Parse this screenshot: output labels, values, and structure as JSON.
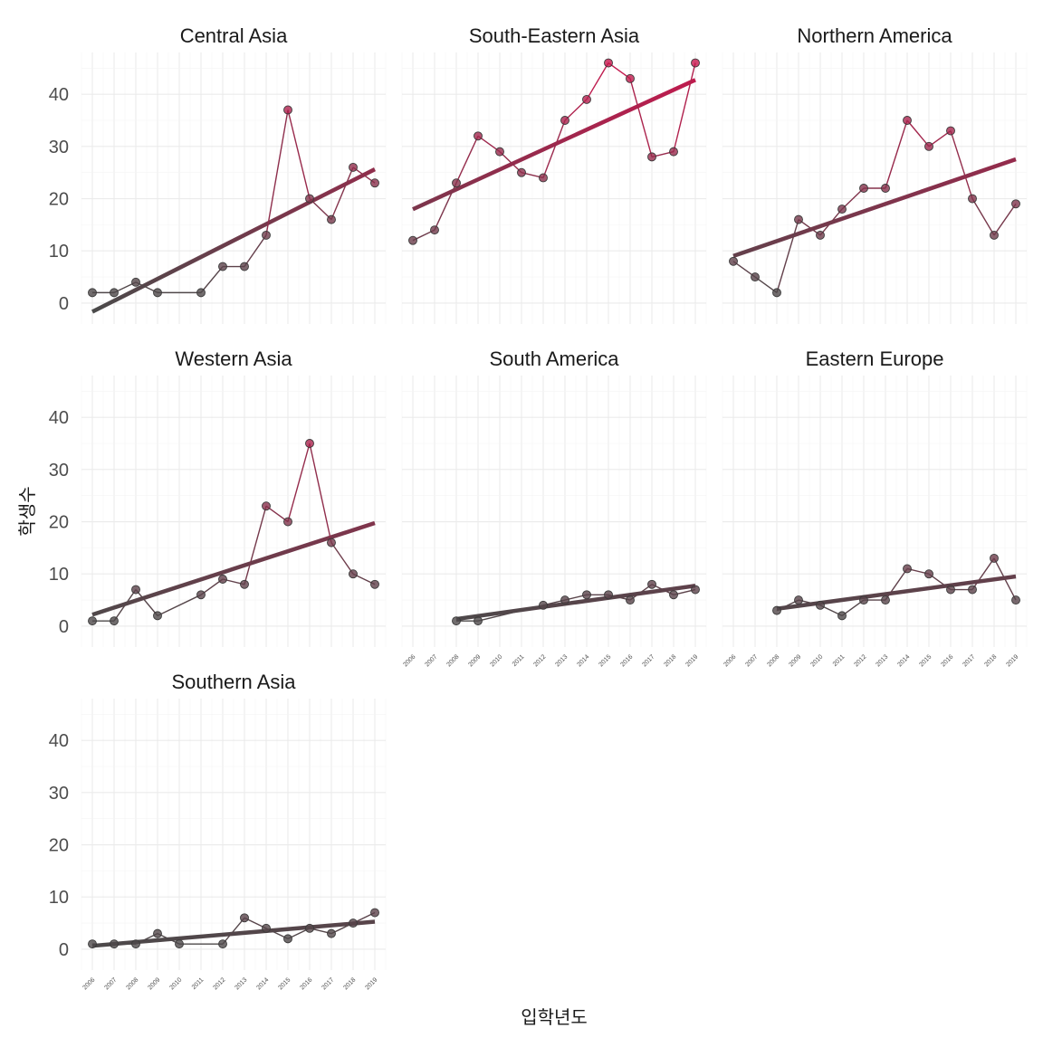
{
  "chart_data": {
    "type": "line",
    "facet": true,
    "xlabel": "입학년도",
    "ylabel": "학생수",
    "x_ticks": [
      2006,
      2007,
      2008,
      2009,
      2010,
      2011,
      2012,
      2013,
      2014,
      2015,
      2016,
      2017,
      2018,
      2019
    ],
    "y_ticks": [
      0,
      10,
      20,
      30,
      40
    ],
    "ylim": [
      -4,
      48
    ],
    "xlim": [
      2005.5,
      2019.5
    ],
    "grid": true,
    "color_scale": {
      "low": "#4a4a4a",
      "high": "#c8174e"
    },
    "trend": "linear",
    "series": [
      {
        "name": "Central Asia",
        "x": [
          2006,
          2007,
          2008,
          2009,
          2011,
          2012,
          2013,
          2014,
          2015,
          2016,
          2017,
          2018,
          2019
        ],
        "y": [
          2,
          2,
          4,
          2,
          2,
          7,
          7,
          13,
          37,
          20,
          16,
          26,
          23
        ]
      },
      {
        "name": "South-Eastern Asia",
        "x": [
          2006,
          2007,
          2008,
          2009,
          2010,
          2011,
          2012,
          2013,
          2014,
          2015,
          2016,
          2017,
          2018,
          2019
        ],
        "y": [
          12,
          14,
          23,
          32,
          29,
          25,
          24,
          35,
          39,
          46,
          43,
          28,
          29,
          46
        ]
      },
      {
        "name": "Northern America",
        "x": [
          2006,
          2007,
          2008,
          2009,
          2010,
          2011,
          2012,
          2013,
          2014,
          2015,
          2016,
          2017,
          2018,
          2019
        ],
        "y": [
          8,
          5,
          2,
          16,
          13,
          18,
          22,
          22,
          35,
          30,
          33,
          20,
          13,
          19
        ]
      },
      {
        "name": "Western Asia",
        "x": [
          2006,
          2007,
          2008,
          2009,
          2011,
          2012,
          2013,
          2014,
          2015,
          2016,
          2017,
          2018,
          2019
        ],
        "y": [
          1,
          1,
          7,
          2,
          6,
          9,
          8,
          23,
          20,
          35,
          16,
          10,
          8
        ]
      },
      {
        "name": "South America",
        "x": [
          2008,
          2009,
          2012,
          2013,
          2014,
          2015,
          2016,
          2017,
          2018,
          2019
        ],
        "y": [
          1,
          1,
          4,
          5,
          6,
          6,
          5,
          8,
          6,
          7
        ]
      },
      {
        "name": "Eastern Europe",
        "x": [
          2008,
          2009,
          2010,
          2011,
          2012,
          2013,
          2014,
          2015,
          2016,
          2017,
          2018,
          2019
        ],
        "y": [
          3,
          5,
          4,
          2,
          5,
          5,
          11,
          10,
          7,
          7,
          13,
          5
        ]
      },
      {
        "name": "Southern Asia",
        "x": [
          2006,
          2007,
          2008,
          2009,
          2010,
          2012,
          2013,
          2014,
          2015,
          2016,
          2017,
          2018,
          2019
        ],
        "y": [
          1,
          1,
          1,
          3,
          1,
          1,
          6,
          4,
          2,
          4,
          3,
          5,
          7
        ]
      }
    ]
  }
}
